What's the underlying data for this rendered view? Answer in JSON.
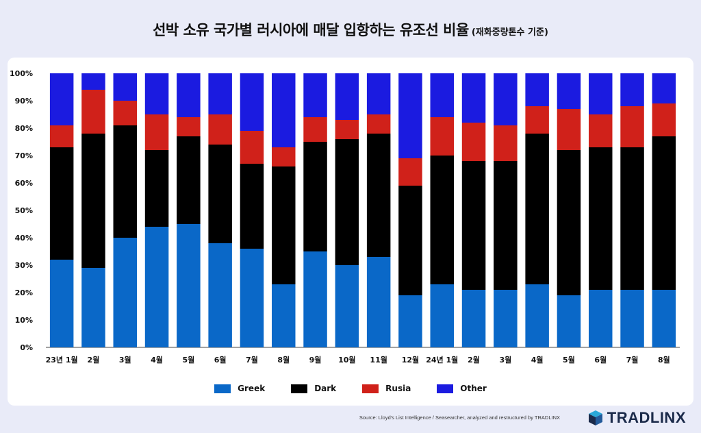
{
  "title": {
    "main": "선박 소유 국가별 러시아에 매달 입항하는 유조선 비율",
    "sub": "(재화중량톤수 기준)"
  },
  "footer": {
    "source": "Source: Lloyd's List Intelligence / Seasearcher, analyzed and restructured by TRADLINX",
    "brand": "TRADLINX"
  },
  "chart_data": {
    "type": "bar",
    "stacked": true,
    "categories": [
      "23년 1월",
      "2월",
      "3월",
      "4월",
      "5월",
      "6월",
      "7월",
      "8월",
      "9월",
      "10월",
      "11월",
      "12월",
      "24년 1월",
      "2월",
      "3월",
      "4월",
      "5월",
      "6월",
      "7월",
      "8월"
    ],
    "series": [
      {
        "name": "Greek",
        "color": "#0a68c8",
        "values": [
          32,
          29,
          40,
          44,
          45,
          38,
          36,
          23,
          35,
          30,
          33,
          19,
          23,
          21,
          21,
          23,
          19,
          21,
          21,
          21
        ]
      },
      {
        "name": "Dark",
        "color": "#000000",
        "values": [
          41,
          49,
          41,
          28,
          32,
          36,
          31,
          43,
          40,
          46,
          45,
          40,
          47,
          47,
          47,
          55,
          53,
          52,
          52,
          56
        ]
      },
      {
        "name": "Rusia",
        "color": "#d0211a",
        "values": [
          8,
          16,
          9,
          13,
          7,
          11,
          12,
          7,
          9,
          7,
          7,
          10,
          14,
          14,
          13,
          10,
          15,
          12,
          15,
          12
        ]
      },
      {
        "name": "Other",
        "color": "#1b1be0",
        "values": [
          19,
          6,
          10,
          15,
          16,
          15,
          21,
          27,
          16,
          17,
          15,
          31,
          16,
          18,
          19,
          12,
          13,
          15,
          12,
          11
        ]
      }
    ],
    "y_ticks": [
      "0%",
      "10%",
      "20%",
      "30%",
      "40%",
      "50%",
      "60%",
      "70%",
      "80%",
      "90%",
      "100%"
    ],
    "ylim": [
      0,
      100
    ],
    "grid": false,
    "legend_position": "bottom"
  }
}
